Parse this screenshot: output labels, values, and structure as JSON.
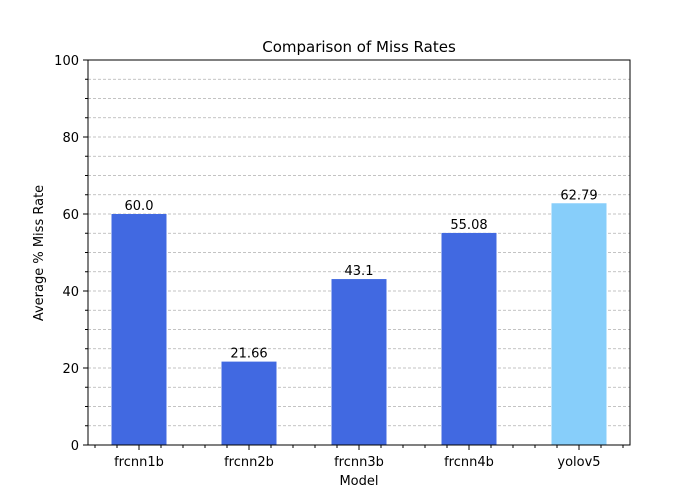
{
  "chart_data": {
    "type": "bar",
    "title": "Comparison of Miss Rates",
    "xlabel": "Model",
    "ylabel": "Average % Miss Rate",
    "categories": [
      "frcnn1b",
      "frcnn2b",
      "frcnn3b",
      "frcnn4b",
      "yolov5"
    ],
    "values": [
      60.0,
      21.66,
      43.1,
      55.08,
      62.79
    ],
    "value_labels": [
      "60.0",
      "21.66",
      "43.1",
      "55.08",
      "62.79"
    ],
    "bar_colors": [
      "#4169e1",
      "#4169e1",
      "#4169e1",
      "#4169e1",
      "#87cefa"
    ],
    "ylim": [
      0,
      100
    ],
    "yticks": [
      0,
      20,
      40,
      60,
      80,
      100
    ],
    "ytick_labels": [
      "0",
      "20",
      "40",
      "60",
      "80",
      "100"
    ],
    "grid": true,
    "grid_axis": "y",
    "grid_style": "dashed"
  }
}
